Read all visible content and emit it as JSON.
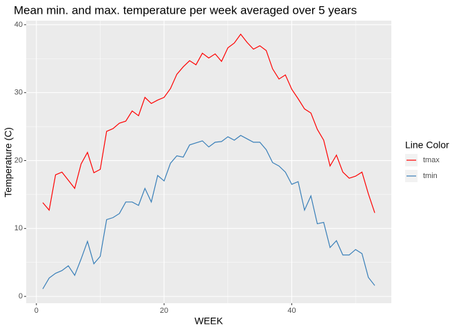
{
  "chart_data": {
    "type": "line",
    "title": "Mean min. and max. temperature per week averaged over 5 years",
    "x_label": "WEEK",
    "y_label": "Temperature (C)",
    "legend_title": "Line Color",
    "legend_position": "right",
    "grid": true,
    "x": [
      1,
      2,
      3,
      4,
      5,
      6,
      7,
      8,
      9,
      10,
      11,
      12,
      13,
      14,
      15,
      16,
      17,
      18,
      19,
      20,
      21,
      22,
      23,
      24,
      25,
      26,
      27,
      28,
      29,
      30,
      31,
      32,
      33,
      34,
      35,
      36,
      37,
      38,
      39,
      40,
      41,
      42,
      43,
      44,
      45,
      46,
      47,
      48,
      49,
      50,
      51,
      52,
      53
    ],
    "series": [
      {
        "name": "tmax",
        "color": "#ff0000",
        "values": [
          13.8,
          12.7,
          17.9,
          18.3,
          17.1,
          15.9,
          19.5,
          21.2,
          18.2,
          18.7,
          24.3,
          24.7,
          25.5,
          25.8,
          27.3,
          26.6,
          29.3,
          28.4,
          28.9,
          29.3,
          30.6,
          32.7,
          33.8,
          34.7,
          34.1,
          35.8,
          35.1,
          35.7,
          34.6,
          36.6,
          37.3,
          38.6,
          37.4,
          36.4,
          36.9,
          36.2,
          33.5,
          32.0,
          32.6,
          30.5,
          29.1,
          27.6,
          27.0,
          24.6,
          23.0,
          19.2,
          20.8,
          18.3,
          17.4,
          17.7,
          18.3,
          15.1,
          12.3
        ]
      },
      {
        "name": "tmin",
        "color": "#377eb8",
        "values": [
          1.1,
          2.7,
          3.4,
          3.8,
          4.5,
          3.1,
          5.5,
          8.1,
          4.8,
          5.9,
          11.3,
          11.6,
          12.2,
          13.9,
          13.9,
          13.4,
          15.9,
          13.9,
          17.8,
          17.0,
          19.6,
          20.7,
          20.5,
          22.3,
          22.6,
          22.9,
          22.0,
          22.7,
          22.8,
          23.5,
          23.0,
          23.7,
          23.2,
          22.7,
          22.7,
          21.6,
          19.7,
          19.2,
          18.3,
          16.5,
          16.9,
          12.7,
          14.8,
          10.7,
          10.9,
          7.2,
          8.2,
          6.1,
          6.1,
          6.9,
          6.3,
          2.8,
          1.6
        ]
      }
    ],
    "xlim": [
      -1.6,
      55.6
    ],
    "xticks": [
      0,
      20,
      40
    ],
    "ylim": [
      -1,
      40.6
    ],
    "yticks": [
      0,
      10,
      20,
      30,
      40
    ]
  }
}
